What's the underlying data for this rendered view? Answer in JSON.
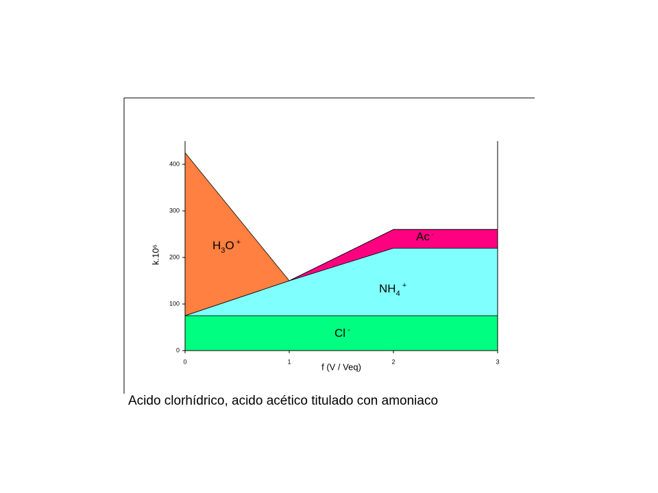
{
  "chart_data": {
    "type": "area",
    "stacked": true,
    "caption": "Acido clorhídrico, acido acético  titulado con amoniaco",
    "xlabel": "f (V / Veq)",
    "ylabel": "k.10⁶",
    "x": [
      0,
      1,
      2,
      3
    ],
    "series": [
      {
        "name": "Cl-",
        "color": "#00ff80",
        "values": [
          75,
          75,
          75,
          75
        ]
      },
      {
        "name": "NH4+",
        "color": "#80ffff",
        "values": [
          0,
          75,
          145,
          145
        ]
      },
      {
        "name": "Ac-",
        "color": "#ff0080",
        "values": [
          0,
          0,
          40,
          40
        ]
      },
      {
        "name": "H3O+",
        "color": "#ff8040",
        "values": [
          350,
          0,
          0,
          0
        ]
      }
    ],
    "xlim": [
      0,
      3
    ],
    "xticks": [
      0,
      1,
      2,
      3
    ],
    "ylim": [
      0,
      450
    ],
    "yticks": [
      0,
      100,
      200,
      300,
      400
    ]
  }
}
